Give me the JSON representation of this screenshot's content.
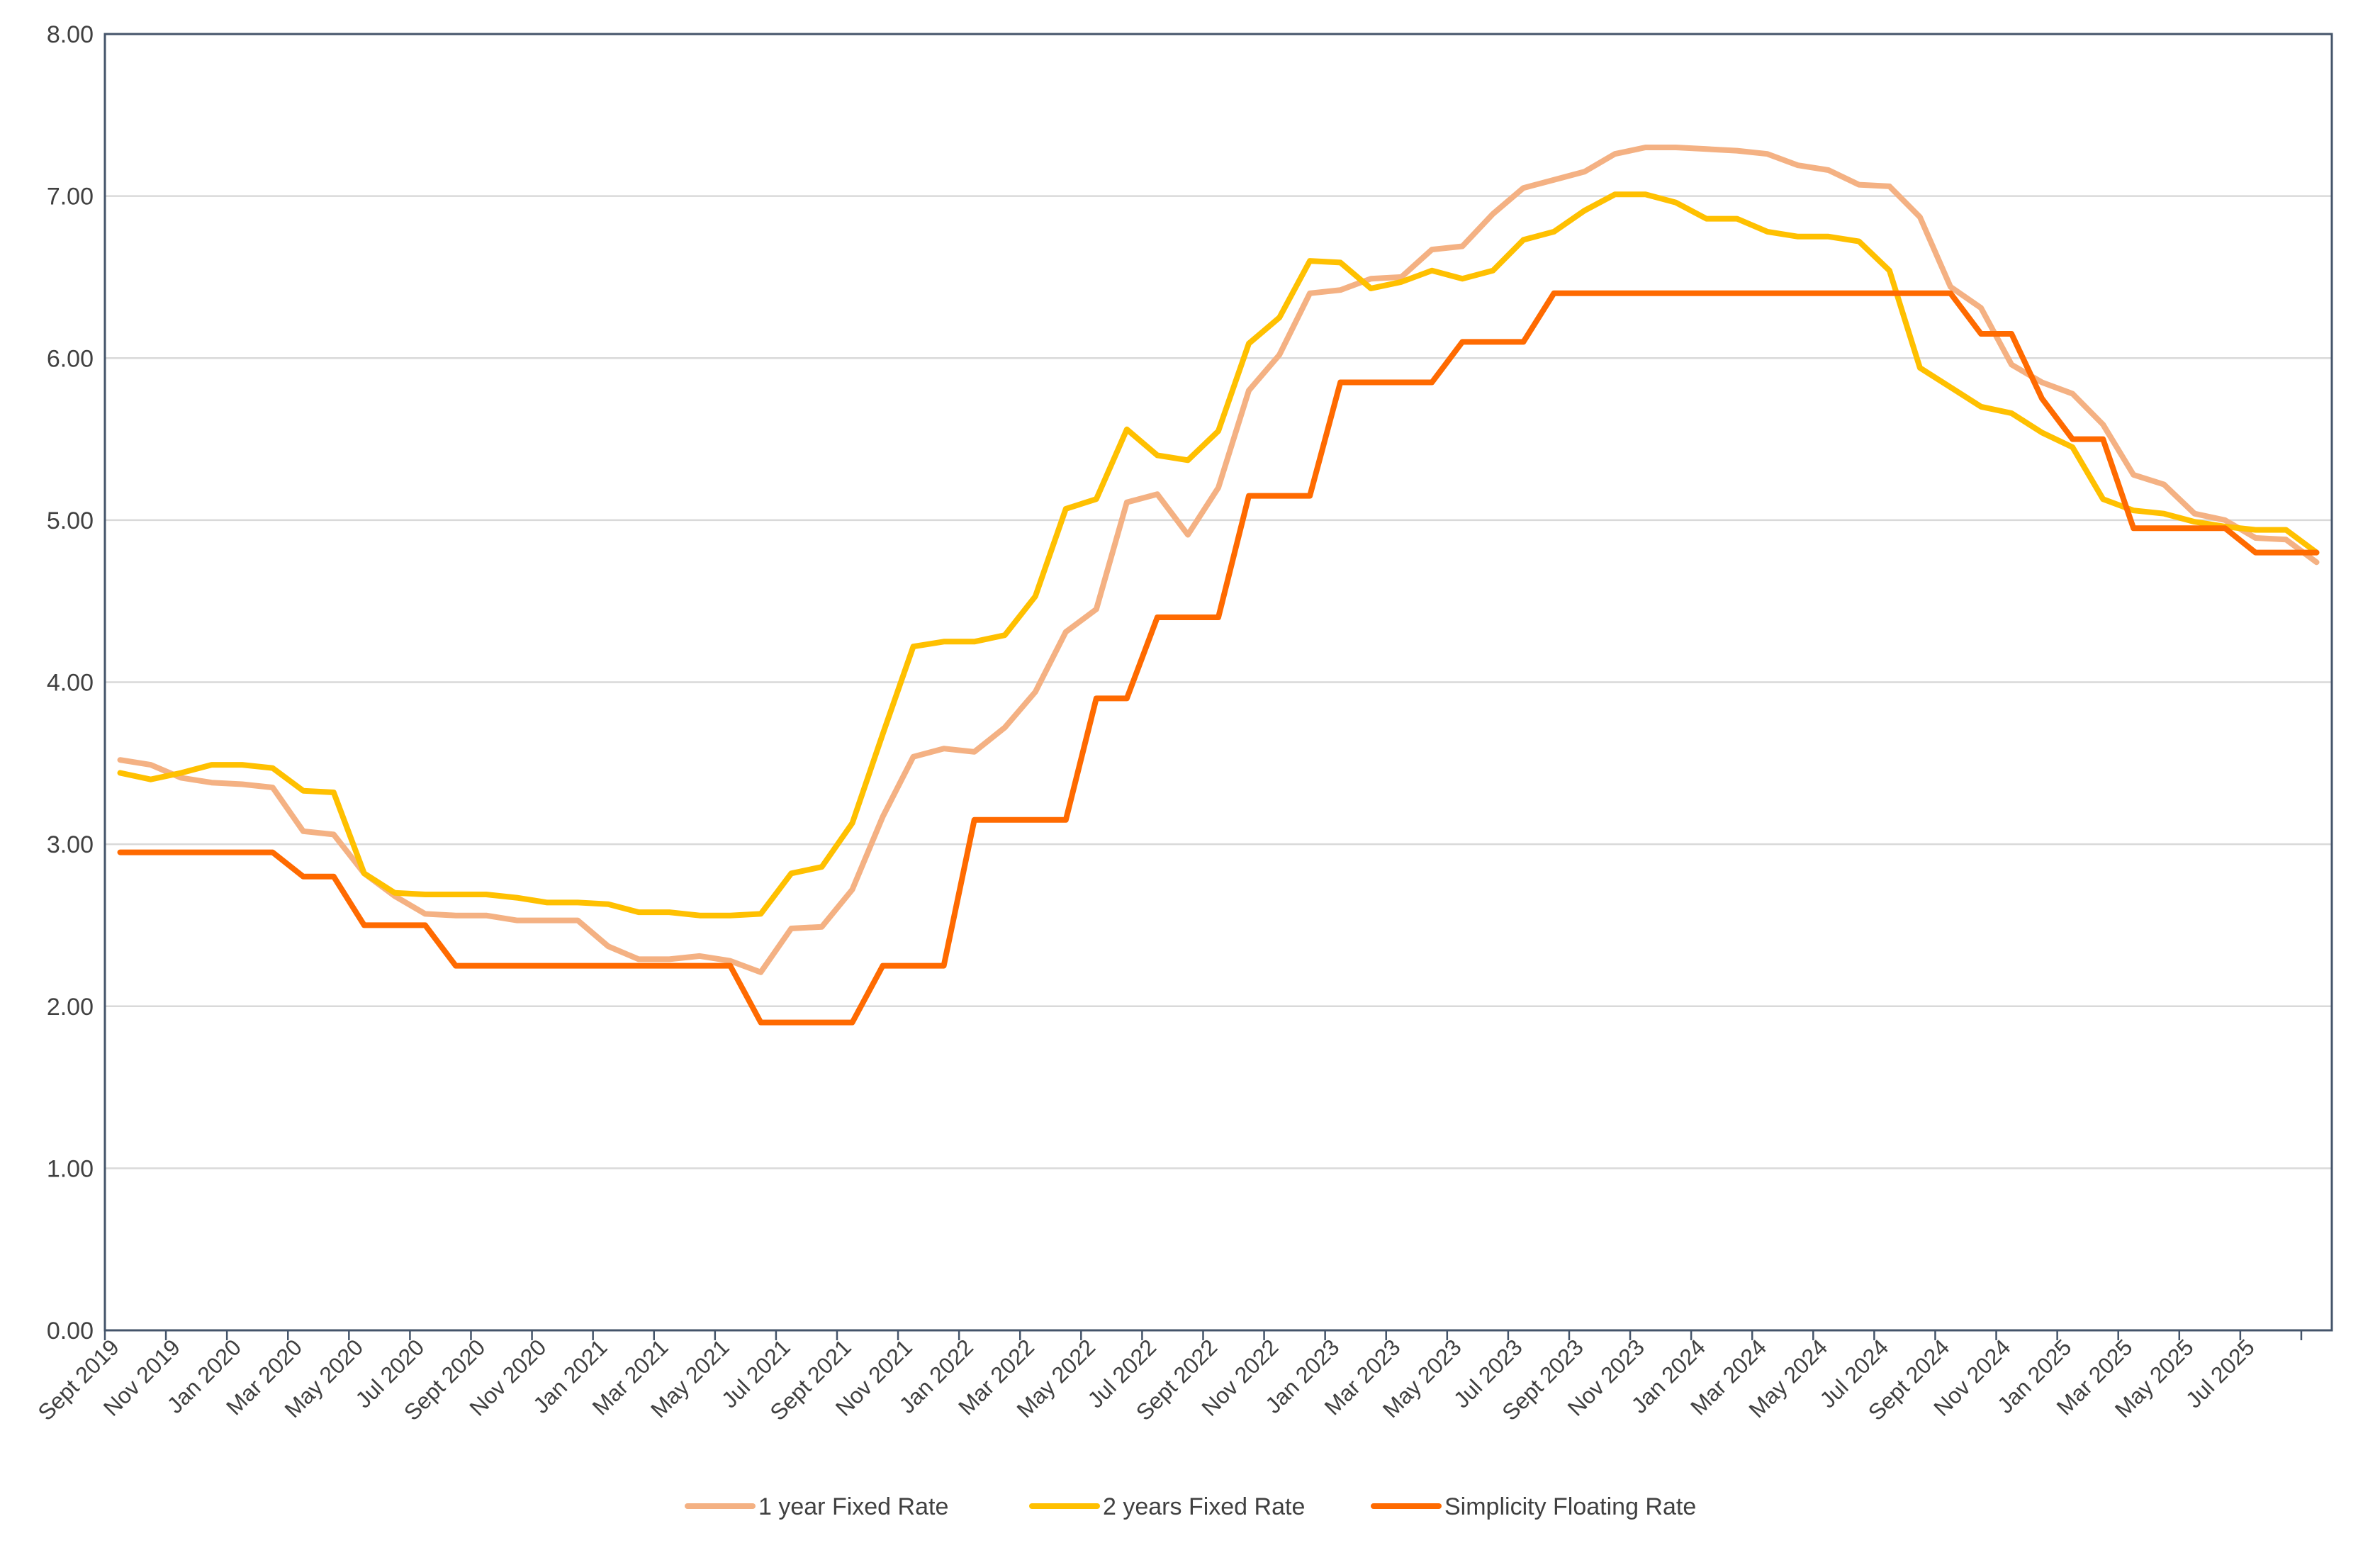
{
  "chart_data": {
    "type": "line",
    "title": "",
    "xlabel": "",
    "ylabel": "",
    "ylim": [
      0,
      8
    ],
    "y_ticks": [
      "0.00",
      "1.00",
      "2.00",
      "3.00",
      "4.00",
      "5.00",
      "6.00",
      "7.00",
      "8.00"
    ],
    "grid": "horizontal",
    "legend_position": "bottom",
    "x_tick_labels": [
      "Sept 2019",
      "Nov 2019",
      "Jan 2020",
      "Mar 2020",
      "May 2020",
      "Jul 2020",
      "Sept 2020",
      "Nov 2020",
      "Jan 2021",
      "Mar 2021",
      "May 2021",
      "Jul 2021",
      "Sept 2021",
      "Nov 2021",
      "Jan 2022",
      "Mar 2022",
      "May 2022",
      "Jul 2022",
      "Sept 2022",
      "Nov 2022",
      "Jan 2023",
      "Mar 2023",
      "May 2023",
      "Jul 2023",
      "Sept 2023",
      "Nov 2023",
      "Jan 2024",
      "Mar 2024",
      "May 2024",
      "Jul 2024",
      "Sept 2024",
      "Nov 2024",
      "Jan 2025",
      "Mar 2025",
      "May 2025",
      "Jul 2025"
    ],
    "series": [
      {
        "name": "1 year Fixed Rate",
        "color": "#f4b183",
        "values": [
          3.52,
          3.49,
          3.41,
          3.38,
          3.37,
          3.35,
          3.08,
          3.06,
          2.82,
          2.68,
          2.57,
          2.56,
          2.56,
          2.53,
          2.53,
          2.53,
          2.37,
          2.29,
          2.29,
          2.31,
          2.28,
          2.21,
          2.48,
          2.49,
          2.72,
          3.17,
          3.54,
          3.59,
          3.57,
          3.72,
          3.94,
          4.31,
          4.45,
          5.11,
          5.16,
          4.91,
          5.2,
          5.8,
          6.02,
          6.4,
          6.42,
          6.49,
          6.5,
          6.67,
          6.69,
          6.89,
          7.05,
          7.1,
          7.15,
          7.26,
          7.3,
          7.3,
          7.29,
          7.28,
          7.26,
          7.19,
          7.16,
          7.07,
          7.06,
          6.87,
          6.44,
          6.31,
          5.96,
          5.85,
          5.78,
          5.59,
          5.28,
          5.22,
          5.04,
          5.0,
          4.89,
          4.88,
          4.74
        ]
      },
      {
        "name": "2 years Fixed Rate",
        "color": "#ffc000",
        "values": [
          3.44,
          3.4,
          3.44,
          3.49,
          3.49,
          3.47,
          3.33,
          3.32,
          2.82,
          2.7,
          2.69,
          2.69,
          2.69,
          2.67,
          2.64,
          2.64,
          2.63,
          2.58,
          2.58,
          2.56,
          2.56,
          2.57,
          2.82,
          2.86,
          3.13,
          3.68,
          4.22,
          4.25,
          4.25,
          4.29,
          4.53,
          5.07,
          5.13,
          5.56,
          5.4,
          5.37,
          5.55,
          6.09,
          6.25,
          6.6,
          6.59,
          6.43,
          6.47,
          6.54,
          6.49,
          6.54,
          6.73,
          6.78,
          6.91,
          7.01,
          7.01,
          6.96,
          6.86,
          6.86,
          6.78,
          6.75,
          6.75,
          6.72,
          6.54,
          5.94,
          5.82,
          5.7,
          5.66,
          5.54,
          5.45,
          5.13,
          5.06,
          5.04,
          4.99,
          4.96,
          4.94,
          4.94,
          4.8
        ]
      },
      {
        "name": "Simplicity Floating Rate",
        "color": "#ff6a00",
        "values": [
          2.95,
          2.95,
          2.95,
          2.95,
          2.95,
          2.95,
          2.8,
          2.8,
          2.5,
          2.5,
          2.5,
          2.25,
          2.25,
          2.25,
          2.25,
          2.25,
          2.25,
          2.25,
          2.25,
          2.25,
          2.25,
          1.9,
          1.9,
          1.9,
          1.9,
          2.25,
          2.25,
          2.25,
          3.15,
          3.15,
          3.15,
          3.15,
          3.9,
          3.9,
          4.4,
          4.4,
          4.4,
          5.15,
          5.15,
          5.15,
          5.85,
          5.85,
          5.85,
          5.85,
          6.1,
          6.1,
          6.1,
          6.4,
          6.4,
          6.4,
          6.4,
          6.4,
          6.4,
          6.4,
          6.4,
          6.4,
          6.4,
          6.4,
          6.4,
          6.4,
          6.4,
          6.15,
          6.15,
          5.75,
          5.5,
          5.5,
          4.95,
          4.95,
          4.95,
          4.95,
          4.8,
          4.8,
          4.8
        ]
      }
    ]
  }
}
